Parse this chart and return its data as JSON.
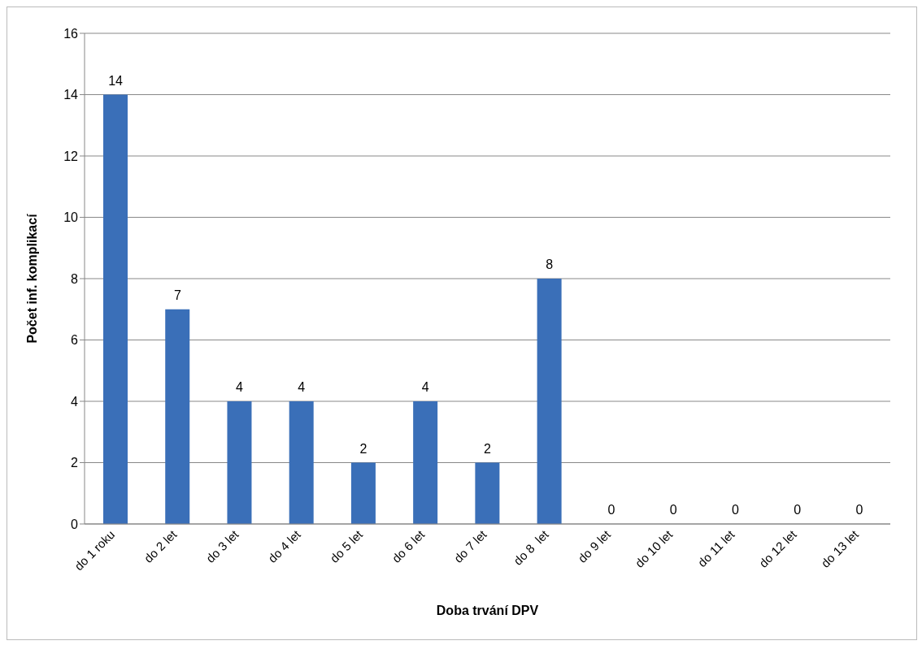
{
  "chart_data": {
    "type": "bar",
    "xlabel": "Doba trvání DPV",
    "ylabel": "Počet inf. komplikací",
    "categories": [
      "do 1 roku",
      "do 2 let",
      "do 3 let",
      "do 4 let",
      "do 5 let",
      "do 6 let",
      "do 7 let",
      "do 8  let",
      "do 9 let",
      "do 10 let",
      "do 11 let",
      "do 12 let",
      "do 13 let"
    ],
    "values": [
      14,
      7,
      4,
      4,
      2,
      4,
      2,
      8,
      0,
      0,
      0,
      0,
      0
    ],
    "color": "#3a6fb8",
    "ylim": [
      0,
      16
    ],
    "yticks": [
      0,
      2,
      4,
      6,
      8,
      10,
      12,
      14,
      16
    ],
    "grid": "y",
    "data_labels": true
  }
}
